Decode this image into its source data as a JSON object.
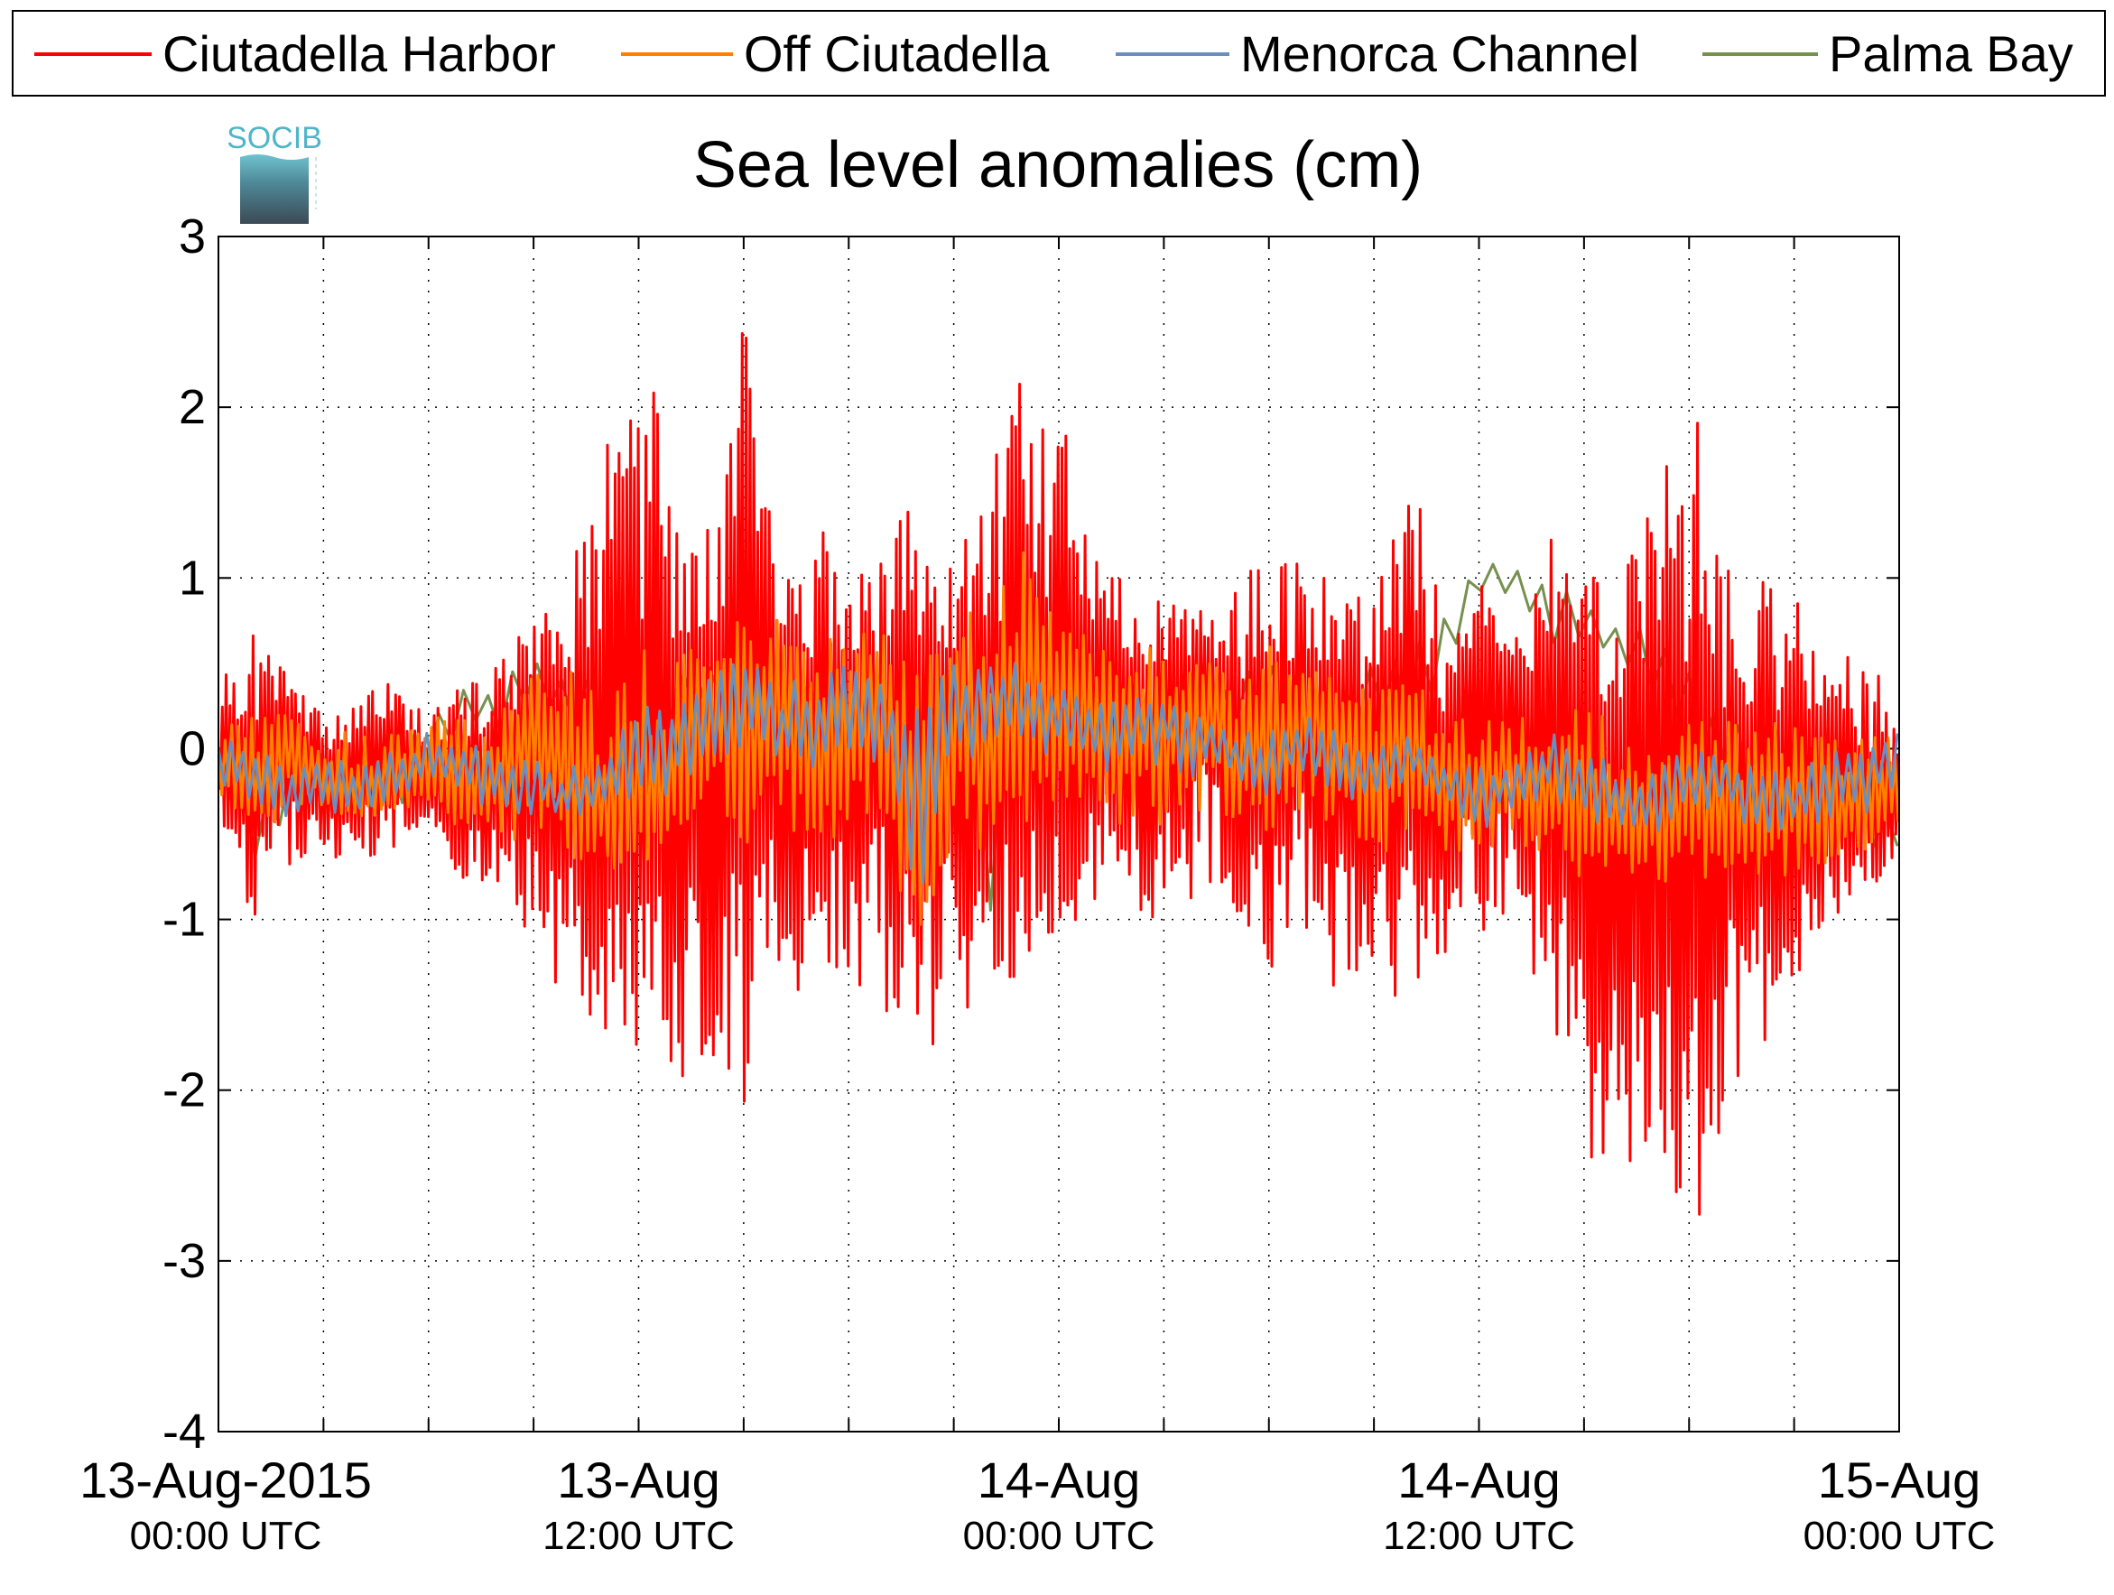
{
  "chart_data": {
    "type": "line",
    "title": "Sea level anomalies (cm)",
    "logo_text": "SOCIB",
    "ylim": [
      -4,
      3
    ],
    "yticks": [
      3,
      2,
      1,
      0,
      -1,
      -2,
      -3,
      -4
    ],
    "ytick_labels": [
      "3",
      "2",
      "1",
      "0",
      "-1",
      "-2",
      "-3",
      "-4"
    ],
    "xlim_hours": [
      0,
      48
    ],
    "xtick_hours": [
      0,
      3,
      6,
      9,
      12,
      15,
      18,
      21,
      24,
      27,
      30,
      33,
      36,
      39,
      42,
      45,
      48
    ],
    "xlabels": [
      {
        "hour": 0,
        "date": "13-Aug-2015",
        "time": "00:00 UTC"
      },
      {
        "hour": 12,
        "date": "13-Aug",
        "time": "12:00 UTC"
      },
      {
        "hour": 24,
        "date": "14-Aug",
        "time": "00:00 UTC"
      },
      {
        "hour": 36,
        "date": "14-Aug",
        "time": "12:00 UTC"
      },
      {
        "hour": 48,
        "date": "15-Aug",
        "time": "00:00 UTC"
      }
    ],
    "grid": true,
    "legend_position": "top",
    "series": [
      {
        "name": "Ciutadella Harbor",
        "color": "#ff0000",
        "x": [
          0,
          1,
          2,
          3,
          4,
          5,
          6,
          7,
          8,
          9,
          10,
          11,
          12,
          13,
          14,
          15,
          16,
          17,
          18,
          19,
          20,
          21,
          22,
          23,
          24,
          25,
          26,
          27,
          28,
          29,
          30,
          31,
          32,
          33,
          34,
          35,
          36,
          37,
          38,
          39,
          40,
          41,
          42,
          43,
          44,
          45,
          46,
          47,
          48
        ],
        "y": [
          0,
          -0.2,
          0.1,
          -0.3,
          -0.2,
          0.1,
          -0.2,
          -0.3,
          -0.2,
          -0.1,
          0.1,
          -0.4,
          -0.3,
          -0.1,
          0.3,
          0.1,
          0.2,
          -0.2,
          0.1,
          0.2,
          -0.3,
          0.1,
          -0.2,
          0.1,
          0.2,
          0.3,
          0.1,
          0.2,
          0.4,
          0.1,
          -0.2,
          0.3,
          0.0,
          -0.1,
          0.1,
          -0.2,
          0.3,
          0.5,
          -0.2,
          0.1,
          -0.4,
          0.2,
          -0.6,
          -0.3,
          -0.3,
          -0.4,
          -0.2,
          -0.3,
          -0.4
        ],
        "max": [
          0.5,
          0.8,
          0.4,
          0.3,
          0.3,
          0.4,
          0.2,
          0.4,
          0.5,
          0.8,
          1.0,
          1.9,
          2.2,
          2.0,
          1.3,
          2.6,
          1.0,
          1.4,
          1.3,
          1.1,
          1.7,
          1.0,
          2.0,
          2.3,
          2.0,
          1.3,
          0.9,
          0.9,
          0.8,
          1.0,
          1.2,
          1.2,
          1.0,
          1.1,
          1.7,
          0.8,
          1.0,
          0.6,
          1.3,
          1.1,
          1.0,
          1.5,
          2.2,
          1.1,
          1.0,
          1.0,
          0.7,
          0.5,
          0.4
        ],
        "min": [
          -0.5,
          -1.0,
          -0.7,
          -0.6,
          -0.7,
          -0.6,
          -0.4,
          -0.8,
          -0.9,
          -1.2,
          -1.5,
          -1.9,
          -1.9,
          -2.0,
          -1.8,
          -2.1,
          -1.7,
          -1.3,
          -1.3,
          -1.6,
          -1.9,
          -1.6,
          -1.5,
          -1.3,
          -1.2,
          -1.0,
          -0.9,
          -1.1,
          -0.9,
          -1.0,
          -1.3,
          -1.1,
          -1.5,
          -1.7,
          -1.5,
          -1.2,
          -1.1,
          -1.3,
          -1.5,
          -2.5,
          -2.6,
          -2.4,
          -3.1,
          -2.2,
          -1.8,
          -1.4,
          -1.2,
          -0.9,
          -0.6
        ]
      },
      {
        "name": "Off Ciutadella",
        "color": "#ff8000",
        "x": [
          0,
          1,
          2,
          3,
          4,
          5,
          6,
          7,
          8,
          9,
          10,
          11,
          12,
          13,
          14,
          15,
          16,
          17,
          18,
          19,
          20,
          21,
          22,
          23,
          24,
          25,
          26,
          27,
          28,
          29,
          30,
          31,
          32,
          33,
          34,
          35,
          36,
          37,
          38,
          39,
          40,
          41,
          42,
          43,
          44,
          45,
          46,
          47,
          48
        ],
        "y": [
          0,
          -0.3,
          0.1,
          -0.2,
          -0.3,
          -0.2,
          -0.2,
          -0.3,
          -0.2,
          0.1,
          0.0,
          -0.4,
          -0.3,
          -0.2,
          0.3,
          0.2,
          0.3,
          -0.1,
          0.2,
          0.3,
          -0.8,
          0.2,
          -0.1,
          0.3,
          0.2,
          0.1,
          0.2,
          0.1,
          0.3,
          0.0,
          -0.2,
          0.2,
          0.0,
          -0.2,
          0.0,
          -0.3,
          -0.3,
          -0.2,
          -0.2,
          -0.5,
          -0.4,
          -0.4,
          -0.3,
          -0.5,
          -0.4,
          -0.3,
          -0.4,
          -0.3,
          -0.1
        ],
        "max": [
          0.2,
          0.2,
          0.2,
          0.1,
          0.1,
          0.2,
          0.2,
          0.2,
          0.3,
          0.5,
          0.5,
          0.4,
          0.6,
          0.6,
          0.6,
          0.8,
          0.8,
          0.6,
          0.7,
          0.8,
          0.6,
          0.9,
          0.8,
          1.2,
          0.8,
          0.7,
          0.6,
          0.6,
          0.5,
          0.5,
          0.6,
          0.5,
          0.4,
          0.4,
          0.5,
          0.2,
          0.2,
          0.2,
          0.3,
          0.3,
          0.1,
          0.1,
          0.2,
          0.2,
          0.2,
          0.2,
          0.1,
          0.1,
          0.1
        ],
        "min": [
          -0.4,
          -0.5,
          -0.4,
          -0.4,
          -0.4,
          -0.4,
          -0.3,
          -0.5,
          -0.5,
          -0.6,
          -0.7,
          -0.7,
          -0.7,
          -0.7,
          -0.6,
          -0.7,
          -0.6,
          -0.6,
          -0.6,
          -0.7,
          -1.2,
          -0.6,
          -0.6,
          -0.5,
          -0.5,
          -0.4,
          -0.5,
          -0.5,
          -0.5,
          -0.4,
          -0.5,
          -0.4,
          -0.5,
          -0.6,
          -0.6,
          -0.6,
          -0.6,
          -0.6,
          -0.6,
          -0.8,
          -0.8,
          -0.8,
          -0.8,
          -0.8,
          -0.8,
          -0.8,
          -0.7,
          -0.6,
          -0.5
        ]
      },
      {
        "name": "Menorca Channel",
        "color": "#6a8fbf",
        "x": [
          0,
          1,
          2,
          3,
          4,
          5,
          6,
          7,
          8,
          9,
          10,
          11,
          12,
          13,
          14,
          15,
          16,
          17,
          18,
          19,
          20,
          21,
          22,
          23,
          24,
          25,
          26,
          27,
          28,
          29,
          30,
          31,
          32,
          33,
          34,
          35,
          36,
          37,
          38,
          39,
          40,
          41,
          42,
          43,
          44,
          45,
          46,
          47,
          48
        ],
        "y": [
          0,
          -0.2,
          -0.3,
          -0.2,
          -0.3,
          -0.2,
          -0.1,
          -0.1,
          -0.2,
          -0.2,
          -0.3,
          -0.2,
          -0.1,
          0.0,
          0.2,
          0.3,
          0.1,
          0.1,
          0.3,
          0.2,
          -0.7,
          0.3,
          0.2,
          0.3,
          0.2,
          0.1,
          0.2,
          0.2,
          0.1,
          0.0,
          -0.1,
          0.1,
          0.0,
          -0.1,
          0.0,
          -0.2,
          -0.3,
          -0.2,
          -0.1,
          -0.2,
          -0.3,
          -0.3,
          -0.2,
          -0.2,
          -0.3,
          -0.3,
          -0.2,
          -0.2,
          0.1
        ],
        "max": [
          0.1,
          0.0,
          -0.1,
          0.0,
          -0.1,
          0.0,
          0.1,
          0.1,
          0.0,
          0.0,
          -0.1,
          0.1,
          0.2,
          0.4,
          0.5,
          0.6,
          0.4,
          0.4,
          0.5,
          0.5,
          0.4,
          0.5,
          0.5,
          0.5,
          0.4,
          0.3,
          0.3,
          0.3,
          0.2,
          0.1,
          0.1,
          0.2,
          0.1,
          0.0,
          0.1,
          0.0,
          -0.1,
          0.0,
          0.1,
          0.0,
          -0.1,
          -0.1,
          0.0,
          0.0,
          -0.1,
          -0.1,
          0.0,
          0.0,
          0.1
        ],
        "min": [
          -0.2,
          -0.4,
          -0.5,
          -0.4,
          -0.4,
          -0.3,
          -0.2,
          -0.3,
          -0.4,
          -0.4,
          -0.4,
          -0.4,
          -0.3,
          -0.3,
          -0.1,
          0.0,
          -0.1,
          -0.2,
          0.0,
          -0.1,
          -0.9,
          -0.1,
          -0.1,
          0.0,
          -0.1,
          -0.2,
          -0.1,
          -0.1,
          -0.2,
          -0.2,
          -0.3,
          -0.2,
          -0.3,
          -0.3,
          -0.2,
          -0.4,
          -0.5,
          -0.4,
          -0.3,
          -0.4,
          -0.5,
          -0.5,
          -0.4,
          -0.4,
          -0.5,
          -0.5,
          -0.4,
          -0.4,
          -0.2
        ]
      },
      {
        "name": "Palma Bay",
        "color": "#76904e",
        "x": [
          0,
          1,
          2,
          3,
          4,
          5,
          6,
          7,
          8,
          9,
          10,
          11,
          12,
          13,
          14,
          15,
          16,
          17,
          18,
          19,
          20,
          21,
          22,
          23,
          24,
          25,
          26,
          27,
          28,
          29,
          30,
          31,
          32,
          33,
          34,
          35,
          36,
          37,
          38,
          39,
          40,
          41,
          42,
          43,
          44,
          45,
          46,
          47,
          48
        ],
        "y": [
          0,
          -0.6,
          -0.2,
          -0.1,
          -0.2,
          -0.2,
          0.1,
          0.3,
          0.2,
          0.4,
          0.3,
          0.2,
          0.2,
          0.3,
          0.4,
          0.6,
          0.3,
          0.2,
          0.1,
          0.3,
          0.1,
          0.3,
          -0.1,
          0.0,
          0.1,
          0.2,
          0.0,
          0.1,
          0.2,
          0.2,
          0.3,
          0.1,
          0.2,
          0.4,
          0.3,
          0.6,
          1.1,
          1.0,
          0.9,
          0.8,
          0.6,
          0.5,
          0.3,
          0.1,
          -0.2,
          -0.3,
          -0.2,
          -0.4,
          -0.5
        ],
        "max": [
          0.1,
          -0.3,
          0.1,
          0.0,
          0.0,
          0.0,
          0.2,
          0.4,
          0.4,
          0.6,
          0.5,
          0.4,
          0.4,
          0.5,
          0.6,
          0.8,
          0.5,
          0.4,
          0.3,
          0.5,
          0.3,
          0.5,
          0.1,
          0.2,
          0.3,
          0.4,
          0.2,
          0.3,
          0.5,
          0.4,
          0.6,
          0.3,
          0.4,
          0.5,
          0.8,
          0.9,
          1.1,
          1.1,
          1.0,
          0.9,
          0.8,
          0.7,
          0.5,
          0.2,
          0.1,
          0.0,
          0.0,
          -0.1,
          -0.3
        ],
        "min": [
          -0.1,
          -0.7,
          -0.4,
          -0.3,
          -0.4,
          -0.4,
          -0.1,
          0.1,
          0.0,
          0.2,
          0.1,
          0.0,
          0.0,
          0.1,
          0.2,
          0.3,
          0.0,
          0.0,
          -0.1,
          0.1,
          -0.1,
          0.0,
          -1.0,
          -0.2,
          -0.1,
          0.0,
          -0.2,
          -0.1,
          0.0,
          0.0,
          0.1,
          -0.1,
          0.0,
          0.2,
          0.1,
          0.4,
          0.9,
          0.8,
          0.6,
          0.6,
          0.4,
          0.3,
          0.0,
          -0.2,
          -0.4,
          -0.5,
          -0.4,
          -0.6,
          -0.7
        ]
      }
    ]
  }
}
